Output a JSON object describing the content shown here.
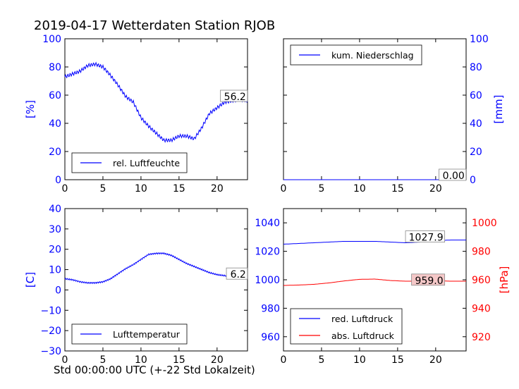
{
  "title": "2019-04-17 Wetterdaten Station RJOB",
  "xlabel": "Std 00:00:00 UTC (+-22 Std Lokalzeit)",
  "colors": {
    "blue": "#0000ff",
    "red": "#ff0000",
    "axes": "#000000",
    "annot_red_bg": "#f5c8c8"
  },
  "chart_data": [
    {
      "type": "line",
      "panel": "top-left",
      "xlim": [
        0,
        24
      ],
      "xticks": [
        "0",
        "5",
        "10",
        "15",
        "20"
      ],
      "ylim": [
        0,
        100
      ],
      "yticks": [
        "0",
        "20",
        "40",
        "60",
        "80",
        "100"
      ],
      "ylabel": "[%]",
      "legend_loc": "lower-left",
      "series": [
        {
          "name": "rel. Luftfeuchte",
          "color": "#0000ff",
          "x": [
            0,
            1,
            2,
            3,
            4,
            5,
            6,
            7,
            8,
            9,
            10,
            11,
            12,
            13,
            14,
            15,
            16,
            17,
            18,
            19,
            20,
            21,
            22,
            23,
            24
          ],
          "y": [
            73,
            75,
            77,
            81,
            82,
            80,
            74,
            67,
            59,
            55,
            44,
            38,
            33,
            28,
            28,
            31,
            31,
            29,
            37,
            47,
            51,
            55,
            56,
            57,
            56
          ]
        }
      ],
      "annotation": "56.2"
    },
    {
      "type": "line",
      "panel": "top-right",
      "xlim": [
        0,
        24
      ],
      "xticks": [
        "0",
        "5",
        "10",
        "15",
        "20"
      ],
      "ylim": [
        0,
        100
      ],
      "yticks": [
        "0",
        "20",
        "40",
        "60",
        "80",
        "100"
      ],
      "ylabel": "[mm]",
      "legend_loc": "upper-left",
      "series": [
        {
          "name": "kum. Niederschlag",
          "color": "#0000ff",
          "x": [
            0,
            24
          ],
          "y": [
            0,
            0
          ]
        }
      ],
      "annotation": "0.00"
    },
    {
      "type": "line",
      "panel": "bottom-left",
      "xlim": [
        0,
        24
      ],
      "xticks": [
        "0",
        "5",
        "10",
        "15",
        "20"
      ],
      "ylim": [
        -30,
        40
      ],
      "yticks": [
        "−30",
        "−20",
        "−10",
        "0",
        "10",
        "20",
        "30",
        "40"
      ],
      "ylabel": "[C]",
      "legend_loc": "lower-left",
      "series": [
        {
          "name": "Lufttemperatur",
          "color": "#0000ff",
          "x": [
            0,
            1,
            2,
            3,
            4,
            5,
            6,
            7,
            8,
            9,
            10,
            11,
            12,
            13,
            14,
            15,
            16,
            17,
            18,
            19,
            20,
            21,
            22,
            23,
            24
          ],
          "y": [
            5.5,
            5,
            4,
            3.5,
            3.5,
            4,
            5.5,
            8,
            10.5,
            12.5,
            15,
            17.5,
            18,
            18,
            17,
            15,
            13,
            11.5,
            10,
            8.5,
            7.5,
            7,
            6.5,
            6.2,
            6.2
          ]
        }
      ],
      "annotation": "6.2"
    },
    {
      "type": "line",
      "panel": "bottom-right",
      "xlim": [
        0,
        24
      ],
      "xticks": [
        "0",
        "5",
        "10",
        "15",
        "20"
      ],
      "ylim": [
        950,
        1050
      ],
      "yticks": [
        "960",
        "980",
        "1000",
        "1020",
        "1040"
      ],
      "ylim_right": [
        910,
        1010
      ],
      "yticks_right": [
        "920",
        "940",
        "960",
        "980",
        "1000"
      ],
      "ylabel_right": "[hPa]",
      "legend_loc": "lower-left",
      "series": [
        {
          "name": "red. Luftdruck",
          "color": "#0000ff",
          "axis": "left",
          "x": [
            0,
            2,
            4,
            6,
            8,
            10,
            12,
            14,
            16,
            18,
            20,
            22,
            24
          ],
          "y": [
            1025,
            1025.5,
            1026,
            1026.5,
            1027,
            1027,
            1027,
            1026.5,
            1026,
            1026.5,
            1027.5,
            1027.9,
            1027.9
          ]
        },
        {
          "name": "abs. Luftdruck",
          "color": "#ff0000",
          "axis": "right",
          "x": [
            0,
            2,
            4,
            6,
            8,
            10,
            12,
            14,
            16,
            18,
            20,
            22,
            24
          ],
          "y": [
            956,
            956.3,
            956.8,
            957.8,
            959.2,
            960.3,
            960.5,
            959.5,
            959,
            959,
            959.3,
            959.0,
            959.0
          ]
        }
      ],
      "annotations": [
        "1027.9",
        "959.0"
      ]
    }
  ]
}
